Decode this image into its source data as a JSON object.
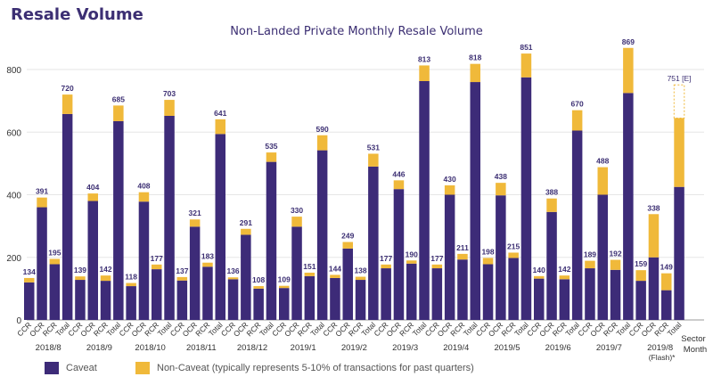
{
  "header": {
    "title": "Resale Volume",
    "subtitle": "Non-Landed Private Monthly Resale Volume"
  },
  "axis": {
    "sector_label": "Sector",
    "month_label": "Month"
  },
  "legend": {
    "caveat_label": "Caveat",
    "non_caveat_label": "Non-Caveat (typically represents 5-10% of transactions for past quarters)"
  },
  "colors": {
    "caveat": "#3d2b78",
    "non_caveat": "#f0b93a",
    "grid": "#e6e6e6",
    "text": "#3c2f73"
  },
  "chart_data": {
    "type": "bar",
    "stacked": true,
    "ylim": [
      0,
      800
    ],
    "yticks": [
      0,
      200,
      400,
      600,
      800
    ],
    "grid": true,
    "groups": [
      {
        "month": "2018/8",
        "bars": [
          {
            "sector": "CCR",
            "caveat": 120,
            "non_caveat": 14,
            "label": "134"
          },
          {
            "sector": "OCR",
            "caveat": 360,
            "non_caveat": 31,
            "label": "391"
          },
          {
            "sector": "RCR",
            "caveat": 178,
            "non_caveat": 17,
            "label": "195"
          },
          {
            "sector": "Total",
            "caveat": 658,
            "non_caveat": 62,
            "label": "720"
          }
        ]
      },
      {
        "month": "2018/9",
        "bars": [
          {
            "sector": "CCR",
            "caveat": 128,
            "non_caveat": 11,
            "label": "139"
          },
          {
            "sector": "OCR",
            "caveat": 380,
            "non_caveat": 24,
            "label": "404"
          },
          {
            "sector": "RCR",
            "caveat": 125,
            "non_caveat": 17,
            "label": "142"
          },
          {
            "sector": "Total",
            "caveat": 635,
            "non_caveat": 50,
            "label": "685"
          }
        ]
      },
      {
        "month": "2018/10",
        "bars": [
          {
            "sector": "CCR",
            "caveat": 108,
            "non_caveat": 10,
            "label": "118"
          },
          {
            "sector": "OCR",
            "caveat": 378,
            "non_caveat": 30,
            "label": "408"
          },
          {
            "sector": "RCR",
            "caveat": 162,
            "non_caveat": 15,
            "label": "177"
          },
          {
            "sector": "Total",
            "caveat": 652,
            "non_caveat": 51,
            "label": "703"
          }
        ]
      },
      {
        "month": "2018/11",
        "bars": [
          {
            "sector": "CCR",
            "caveat": 126,
            "non_caveat": 11,
            "label": "137"
          },
          {
            "sector": "OCR",
            "caveat": 298,
            "non_caveat": 23,
            "label": "321"
          },
          {
            "sector": "RCR",
            "caveat": 170,
            "non_caveat": 13,
            "label": "183"
          },
          {
            "sector": "Total",
            "caveat": 594,
            "non_caveat": 47,
            "label": "641"
          }
        ]
      },
      {
        "month": "2018/12",
        "bars": [
          {
            "sector": "CCR",
            "caveat": 130,
            "non_caveat": 6,
            "label": "136"
          },
          {
            "sector": "OCR",
            "caveat": 272,
            "non_caveat": 19,
            "label": "291"
          },
          {
            "sector": "RCR",
            "caveat": 100,
            "non_caveat": 8,
            "label": "108"
          },
          {
            "sector": "Total",
            "caveat": 505,
            "non_caveat": 30,
            "label": "535"
          }
        ]
      },
      {
        "month": "2019/1",
        "bars": [
          {
            "sector": "CCR",
            "caveat": 102,
            "non_caveat": 7,
            "label": "109"
          },
          {
            "sector": "OCR",
            "caveat": 298,
            "non_caveat": 32,
            "label": "330"
          },
          {
            "sector": "RCR",
            "caveat": 140,
            "non_caveat": 11,
            "label": "151"
          },
          {
            "sector": "Total",
            "caveat": 542,
            "non_caveat": 48,
            "label": "590"
          }
        ]
      },
      {
        "month": "2019/2",
        "bars": [
          {
            "sector": "CCR",
            "caveat": 134,
            "non_caveat": 10,
            "label": "144"
          },
          {
            "sector": "OCR",
            "caveat": 228,
            "non_caveat": 21,
            "label": "249"
          },
          {
            "sector": "RCR",
            "caveat": 128,
            "non_caveat": 10,
            "label": "138"
          },
          {
            "sector": "Total",
            "caveat": 490,
            "non_caveat": 41,
            "label": "531"
          }
        ]
      },
      {
        "month": "2019/3",
        "bars": [
          {
            "sector": "CCR",
            "caveat": 165,
            "non_caveat": 12,
            "label": "177"
          },
          {
            "sector": "OCR",
            "caveat": 418,
            "non_caveat": 28,
            "label": "446"
          },
          {
            "sector": "RCR",
            "caveat": 180,
            "non_caveat": 10,
            "label": "190"
          },
          {
            "sector": "Total",
            "caveat": 763,
            "non_caveat": 50,
            "label": "813"
          }
        ]
      },
      {
        "month": "2019/4",
        "bars": [
          {
            "sector": "CCR",
            "caveat": 165,
            "non_caveat": 12,
            "label": "177"
          },
          {
            "sector": "OCR",
            "caveat": 400,
            "non_caveat": 30,
            "label": "430"
          },
          {
            "sector": "RCR",
            "caveat": 193,
            "non_caveat": 18,
            "label": "211"
          },
          {
            "sector": "Total",
            "caveat": 760,
            "non_caveat": 58,
            "label": "818"
          }
        ]
      },
      {
        "month": "2019/5",
        "bars": [
          {
            "sector": "CCR",
            "caveat": 178,
            "non_caveat": 20,
            "label": "198"
          },
          {
            "sector": "OCR",
            "caveat": 398,
            "non_caveat": 40,
            "label": "438"
          },
          {
            "sector": "RCR",
            "caveat": 198,
            "non_caveat": 17,
            "label": "215"
          },
          {
            "sector": "Total",
            "caveat": 775,
            "non_caveat": 76,
            "label": "851"
          }
        ]
      },
      {
        "month": "2019/6",
        "bars": [
          {
            "sector": "CCR",
            "caveat": 132,
            "non_caveat": 8,
            "label": "140"
          },
          {
            "sector": "OCR",
            "caveat": 345,
            "non_caveat": 43,
            "label": "388"
          },
          {
            "sector": "RCR",
            "caveat": 130,
            "non_caveat": 12,
            "label": "142"
          },
          {
            "sector": "Total",
            "caveat": 605,
            "non_caveat": 65,
            "label": "670"
          }
        ]
      },
      {
        "month": "2019/7",
        "bars": [
          {
            "sector": "CCR",
            "caveat": 165,
            "non_caveat": 24,
            "label": "189"
          },
          {
            "sector": "OCR",
            "caveat": 400,
            "non_caveat": 88,
            "label": "488"
          },
          {
            "sector": "RCR",
            "caveat": 160,
            "non_caveat": 32,
            "label": "192"
          },
          {
            "sector": "Total",
            "caveat": 725,
            "non_caveat": 144,
            "label": "869"
          }
        ]
      },
      {
        "month": "2019/8",
        "month_note": "(Flash)*",
        "bars": [
          {
            "sector": "CCR",
            "caveat": 125,
            "non_caveat": 34,
            "label": "159"
          },
          {
            "sector": "OCR",
            "caveat": 200,
            "non_caveat": 138,
            "label": "338"
          },
          {
            "sector": "RCR",
            "caveat": 95,
            "non_caveat": 54,
            "label": "149"
          },
          {
            "sector": "Total",
            "caveat": 425,
            "non_caveat": 220,
            "estimate_total": 751,
            "label": "751 [E]"
          }
        ]
      }
    ]
  }
}
